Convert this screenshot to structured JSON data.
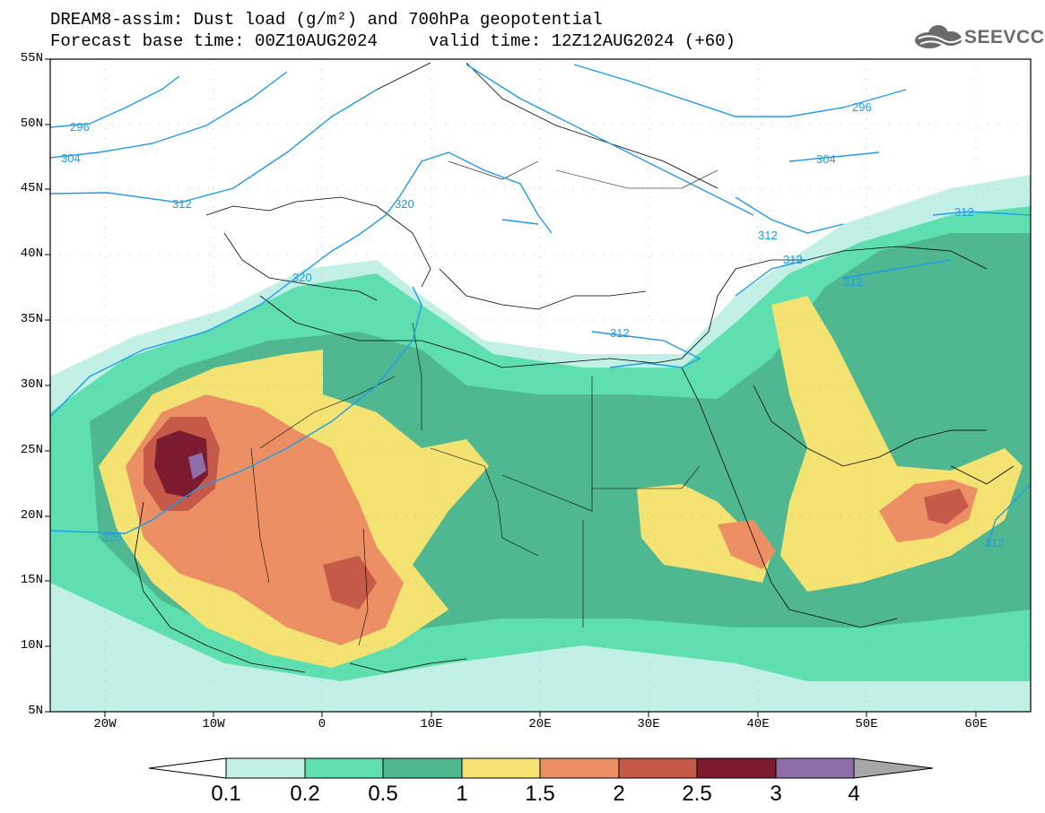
{
  "header": {
    "title_line1": "DREAM8-assim: Dust load (g/m²) and 700hPa geopotential",
    "title_line2": "Forecast base time: 00Z10AUG2024     valid time: 12Z12AUG2024 (+60)",
    "logo_text": "SEEVCCC"
  },
  "axes": {
    "lat_labels": [
      "55N",
      "50N",
      "45N",
      "40N",
      "35N",
      "30N",
      "25N",
      "20N",
      "15N",
      "10N",
      "5N"
    ],
    "lon_labels": [
      "20W",
      "10W",
      "0",
      "10E",
      "20E",
      "30E",
      "40E",
      "50E",
      "60E"
    ],
    "lat_range": [
      5,
      55
    ],
    "lon_range": [
      -25,
      65
    ]
  },
  "colorbar": {
    "labels": [
      "0.1",
      "0.2",
      "0.5",
      "1",
      "1.5",
      "2",
      "2.5",
      "3",
      "4"
    ],
    "colors": [
      "#c2f0e6",
      "#5fdfaf",
      "#4fb891",
      "#f4e373",
      "#ed8f64",
      "#c65a48",
      "#7c1a30",
      "#8e6ea8",
      "#a7a7a7"
    ]
  },
  "contours": {
    "geopotential_labels": [
      "296",
      "304",
      "312",
      "320",
      "320",
      "320",
      "312",
      "312",
      "312",
      "312",
      "296",
      "304",
      "312",
      "312"
    ],
    "color": "#1e9be8"
  }
}
